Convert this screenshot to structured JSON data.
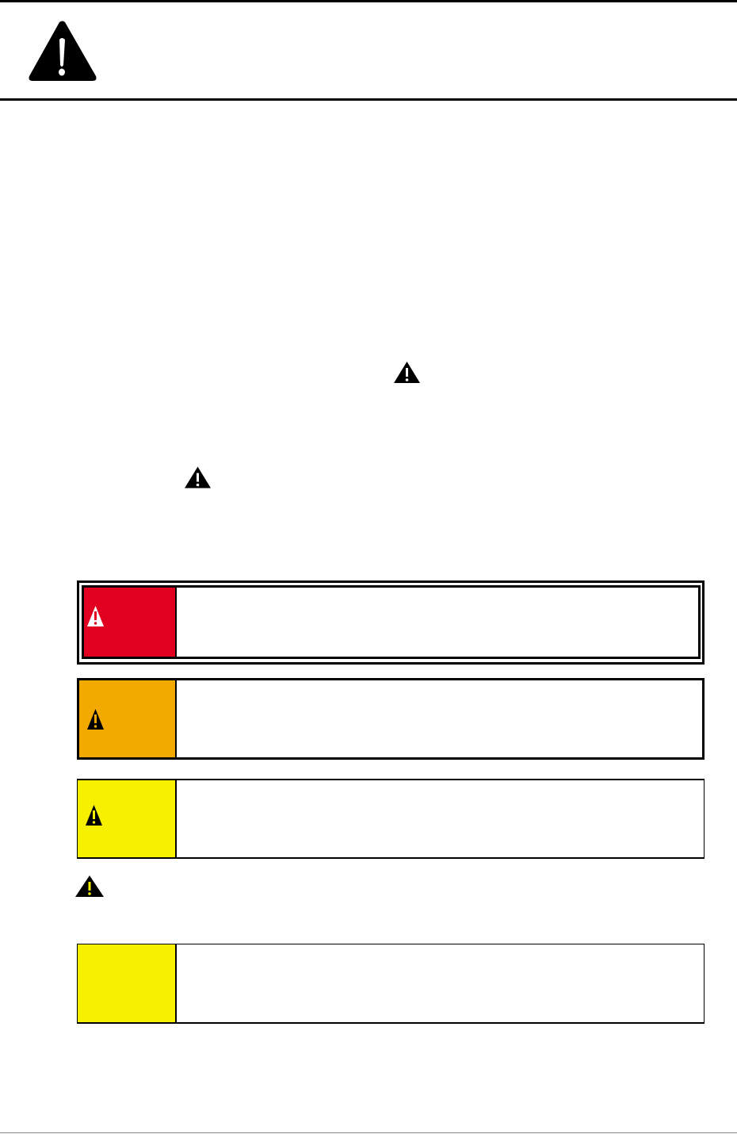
{
  "colors": {
    "danger": "#E1001F",
    "warning": "#F2AA00",
    "caution": "#F7F100",
    "notice": "#F7F100",
    "rule": "#000000"
  },
  "icons": {
    "header": "warning-triangle-icon",
    "inline": "warning-triangle-icon",
    "danger": "warning-triangle-icon",
    "warning": "warning-triangle-icon",
    "caution": "warning-triangle-icon"
  }
}
